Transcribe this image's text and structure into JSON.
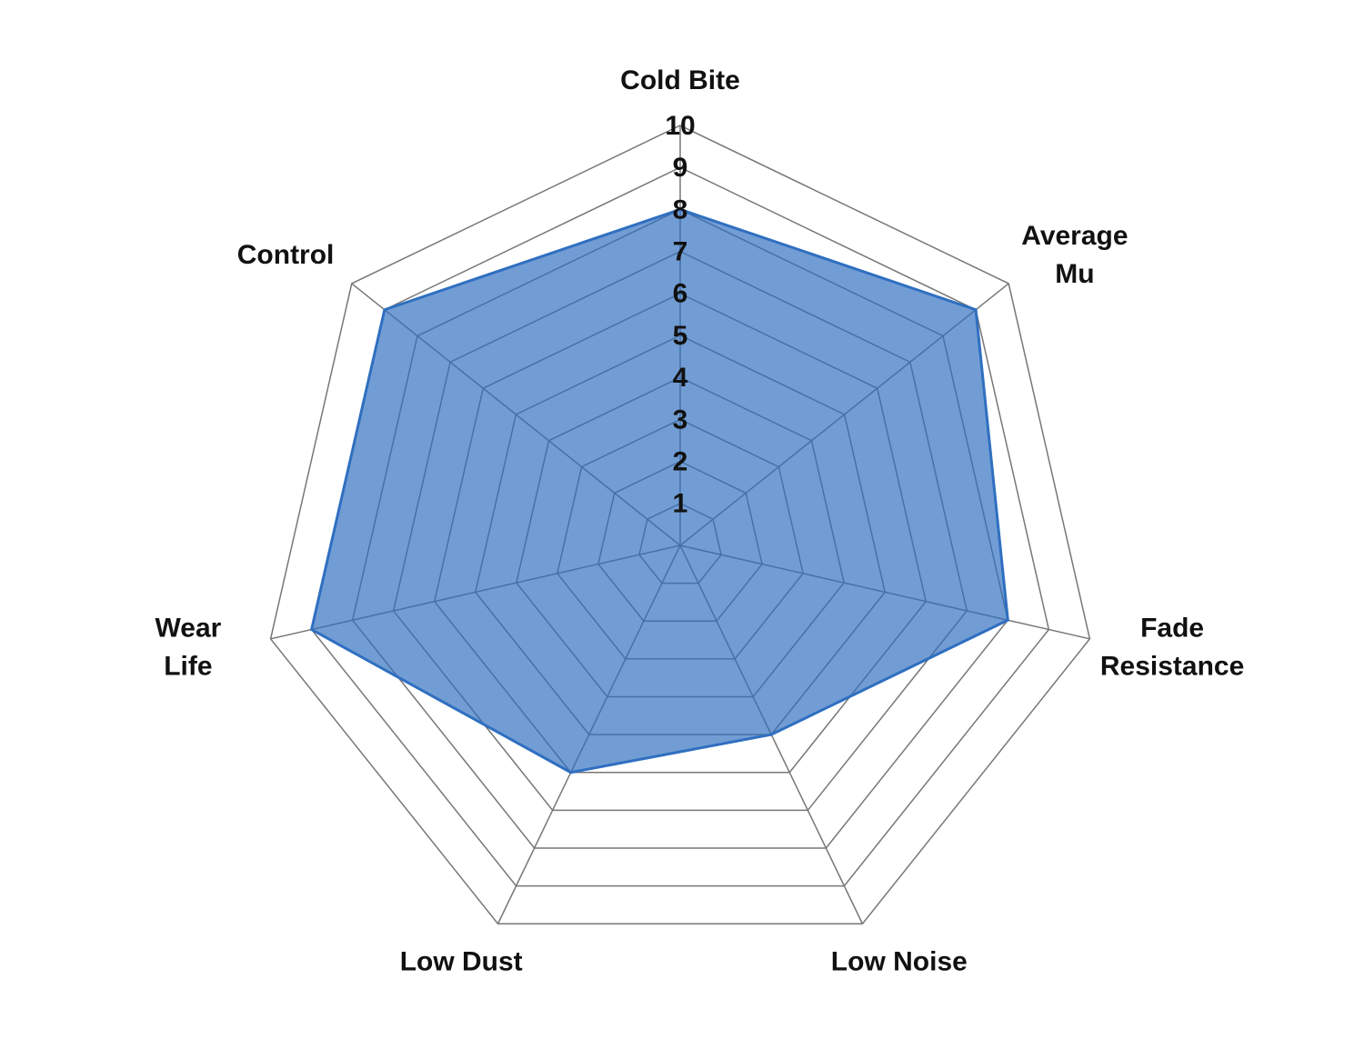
{
  "chart_data": {
    "type": "radar",
    "categories": [
      "Cold Bite",
      "Average\nMu",
      "Fade\nResistance",
      "Low Noise",
      "Low Dust",
      "Wear\nLife",
      "Control"
    ],
    "series": [
      {
        "color": "#2f6fc0",
        "values": [
          8,
          9,
          8,
          5,
          6,
          9,
          9
        ]
      }
    ],
    "rlim": [
      0,
      10
    ],
    "rticks": [
      1,
      2,
      3,
      4,
      5,
      6,
      7,
      8,
      9,
      10
    ],
    "grid": true
  }
}
